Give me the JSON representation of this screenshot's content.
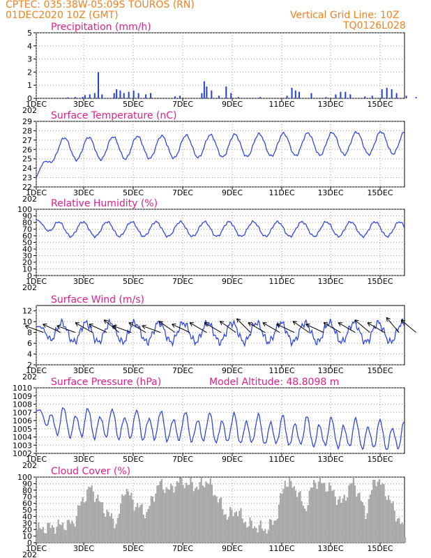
{
  "header": {
    "line1": "CPTEC:   035:38W-05:09S   TOUROS (RN)",
    "line2": "01DEC2020 10Z (GMT)",
    "grid_note": "Vertical Grid Line: 10Z",
    "code": "TQ0126L028"
  },
  "x_axis": {
    "ticks": [
      "1DEC",
      "3DEC",
      "5DEC",
      "7DEC",
      "9DEC",
      "11DEC",
      "13DEC",
      "15DEC"
    ],
    "cut_label": "202"
  },
  "colors": {
    "line": "#3048e0",
    "bar": "#1f3fe0",
    "cloud": "#a8a8a8",
    "title": "#e0208a",
    "header": "#f08020"
  },
  "chart_data": [
    {
      "type": "bar",
      "id": "precip",
      "title": "Precipitation (mm/h)",
      "ylim": [
        0,
        5
      ],
      "yticks": [
        0,
        1,
        2,
        3,
        4,
        5
      ],
      "events": [
        [
          1.3,
          0.08
        ],
        [
          1.6,
          0.1
        ],
        [
          1.9,
          0.1
        ],
        [
          2.0,
          0.25
        ],
        [
          2.2,
          0.3
        ],
        [
          2.4,
          0.4
        ],
        [
          2.55,
          2.0
        ],
        [
          2.7,
          0.3
        ],
        [
          3.2,
          0.4
        ],
        [
          3.3,
          0.7
        ],
        [
          3.45,
          0.6
        ],
        [
          3.6,
          0.4
        ],
        [
          3.8,
          0.5
        ],
        [
          4.0,
          0.6
        ],
        [
          4.2,
          0.4
        ],
        [
          4.5,
          0.3
        ],
        [
          4.7,
          0.4
        ],
        [
          5.7,
          0.15
        ],
        [
          5.9,
          0.2
        ],
        [
          6.8,
          0.4
        ],
        [
          6.9,
          1.3
        ],
        [
          7.0,
          0.9
        ],
        [
          7.2,
          0.6
        ],
        [
          7.5,
          0.2
        ],
        [
          7.8,
          0.9
        ],
        [
          8.0,
          0.4
        ],
        [
          8.3,
          0.1
        ],
        [
          9.2,
          0.1
        ],
        [
          10.3,
          0.2
        ],
        [
          10.5,
          0.8
        ],
        [
          10.65,
          0.6
        ],
        [
          10.8,
          0.5
        ],
        [
          11.3,
          0.4
        ],
        [
          11.9,
          0.1
        ],
        [
          12.3,
          0.3
        ],
        [
          12.5,
          0.5
        ],
        [
          12.7,
          0.5
        ],
        [
          12.9,
          0.3
        ],
        [
          13.5,
          0.15
        ],
        [
          13.8,
          0.2
        ],
        [
          14.2,
          0.7
        ],
        [
          14.4,
          0.8
        ],
        [
          14.6,
          0.7
        ],
        [
          14.8,
          0.4
        ],
        [
          15.2,
          0.2
        ],
        [
          15.6,
          0.1
        ]
      ]
    },
    {
      "type": "line",
      "id": "temp",
      "title": "Surface Temperature (nC)",
      "ylim": [
        22,
        29
      ],
      "yticks": [
        22,
        23,
        24,
        25,
        26,
        27,
        28,
        29
      ],
      "series": {
        "mean": 26.0,
        "amp": 1.2,
        "phase": 0.6,
        "trend": 0.05,
        "start": 23.0,
        "ripple": 0.15
      }
    },
    {
      "type": "line",
      "id": "rh",
      "title": "Relative Humidity (%)",
      "ylim": [
        0,
        100
      ],
      "yticks": [
        0,
        10,
        20,
        30,
        40,
        50,
        60,
        70,
        80,
        90,
        100
      ],
      "series": {
        "mean": 70,
        "amp": 11,
        "phase": 2.1,
        "trend": 0,
        "start": 84,
        "ripple": 2
      }
    },
    {
      "type": "line",
      "id": "wind",
      "title": "Surface Wind (m/s)",
      "ylim": [
        2,
        13
      ],
      "yticks": [
        2,
        4,
        6,
        8,
        10,
        12
      ],
      "series": {
        "mean": 8.0,
        "amp": 1.8,
        "phase": 1.3,
        "trend": 0,
        "start": 9.0,
        "ripple": 0.8
      },
      "barbs": [
        [
          0.3,
          -20,
          1
        ],
        [
          1.0,
          -25,
          1
        ],
        [
          1.6,
          -20,
          1
        ],
        [
          2.3,
          -30,
          1
        ],
        [
          2.9,
          -25,
          1
        ],
        [
          3.4,
          -40,
          1
        ],
        [
          3.9,
          -20,
          1
        ],
        [
          4.5,
          -30,
          1
        ],
        [
          5.1,
          -20,
          1
        ],
        [
          5.7,
          -35,
          1
        ],
        [
          6.3,
          -25,
          1
        ],
        [
          7.0,
          -30,
          1
        ],
        [
          7.6,
          -30,
          1
        ],
        [
          8.2,
          -35,
          1
        ],
        [
          8.8,
          -45,
          1
        ],
        [
          9.4,
          -30,
          1
        ],
        [
          10.0,
          -30,
          1
        ],
        [
          10.6,
          -25,
          1
        ],
        [
          11.2,
          -35,
          1
        ],
        [
          11.8,
          -25,
          1
        ],
        [
          12.5,
          -30,
          1
        ],
        [
          13.1,
          -30,
          1
        ],
        [
          13.7,
          -40,
          1
        ],
        [
          14.3,
          -30,
          1
        ],
        [
          14.9,
          -50,
          1
        ],
        [
          15.6,
          -40,
          1
        ]
      ]
    },
    {
      "type": "line",
      "id": "pres",
      "title": "Surface Pressure (hPa)",
      "note": "Model Altitude: 48.8098 m",
      "ylim": [
        1002,
        1010
      ],
      "yticks": [
        1002,
        1003,
        1004,
        1005,
        1006,
        1007,
        1008,
        1009,
        1010
      ],
      "series": {
        "mean": 1005.8,
        "amp": 1.5,
        "phase": 0,
        "trend": -0.12,
        "start": 1007.2,
        "ripple": 0.25,
        "semidiurnal": true
      }
    },
    {
      "type": "area",
      "id": "cloud",
      "title": "Cloud Cover (%)",
      "ylim": [
        0,
        100
      ],
      "yticks": [
        0,
        10,
        20,
        30,
        40,
        50,
        60,
        70,
        80,
        90,
        100
      ],
      "profile": [
        [
          0,
          20
        ],
        [
          1.5,
          30
        ],
        [
          1.8,
          60
        ],
        [
          2.2,
          85
        ],
        [
          2.6,
          60
        ],
        [
          3.0,
          40
        ],
        [
          3.3,
          30
        ],
        [
          3.6,
          85
        ],
        [
          4.0,
          60
        ],
        [
          4.5,
          45
        ],
        [
          5.0,
          90
        ],
        [
          5.5,
          80
        ],
        [
          5.8,
          95
        ],
        [
          6.2,
          90
        ],
        [
          6.6,
          85
        ],
        [
          7.0,
          95
        ],
        [
          7.4,
          70
        ],
        [
          7.8,
          40
        ],
        [
          8.2,
          50
        ],
        [
          8.6,
          30
        ],
        [
          9.0,
          25
        ],
        [
          9.4,
          20
        ],
        [
          9.8,
          35
        ],
        [
          10.2,
          95
        ],
        [
          10.7,
          80
        ],
        [
          11.0,
          50
        ],
        [
          11.4,
          95
        ],
        [
          12.0,
          85
        ],
        [
          12.5,
          60
        ],
        [
          13.0,
          95
        ],
        [
          13.5,
          45
        ],
        [
          13.9,
          100
        ],
        [
          14.3,
          80
        ],
        [
          14.8,
          40
        ],
        [
          15.2,
          10
        ],
        [
          15.5,
          45
        ],
        [
          15.8,
          80
        ],
        [
          16.1,
          70
        ]
      ]
    }
  ]
}
